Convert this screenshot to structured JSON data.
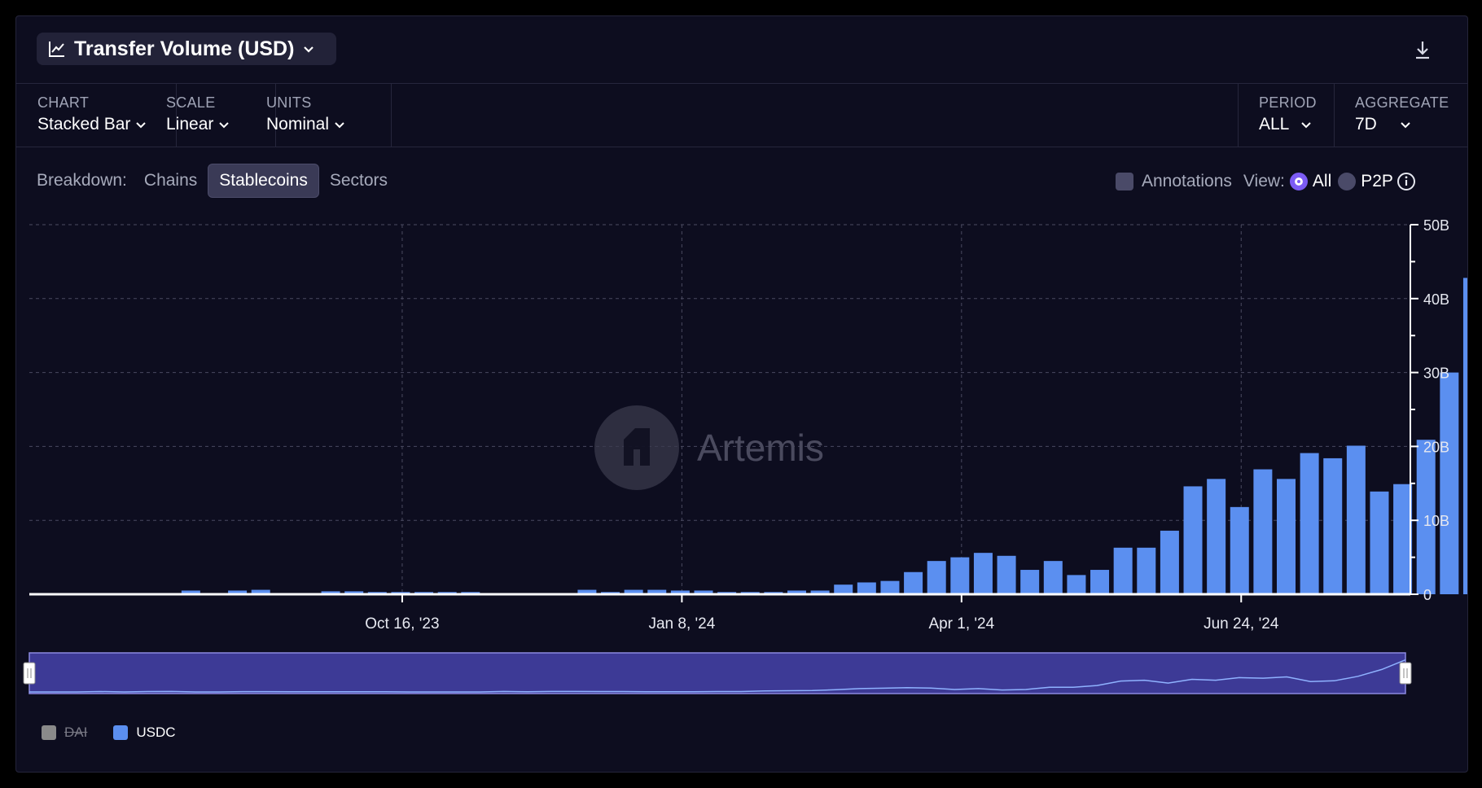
{
  "header": {
    "title": "Transfer Volume (USD)",
    "icons": {
      "title": "line-chart-icon",
      "dropdown": "chevron-down-icon",
      "download": "download-icon"
    }
  },
  "controls": {
    "chart": {
      "label": "CHART",
      "value": "Stacked Bar"
    },
    "scale": {
      "label": "SCALE",
      "value": "Linear"
    },
    "units": {
      "label": "UNITS",
      "value": "Nominal"
    },
    "period": {
      "label": "PERIOD",
      "value": "ALL"
    },
    "aggregate": {
      "label": "AGGREGATE",
      "value": "7D"
    }
  },
  "breakdown": {
    "label": "Breakdown:",
    "options": [
      "Chains",
      "Stablecoins",
      "Sectors"
    ],
    "active": "Stablecoins"
  },
  "options": {
    "annotations": "Annotations",
    "view_label": "View:",
    "view_all": "All",
    "view_p2p": "P2P",
    "info_icon": "info-icon"
  },
  "watermark": "Artemis",
  "colors": {
    "bar": "#5b8ff0",
    "brush": "#3d3a96",
    "active_radio": "#7c5cf5"
  },
  "legend": [
    {
      "name": "DAI",
      "color": "#8a8a8a",
      "disabled": true
    },
    {
      "name": "USDC",
      "color": "#5b8ff0",
      "disabled": false
    }
  ],
  "chart_data": {
    "type": "bar",
    "stacked": true,
    "title": "Transfer Volume (USD)",
    "ylim": [
      0,
      50
    ],
    "y_unit": "B",
    "y_ticks": [
      "0",
      "10B",
      "20B",
      "30B",
      "40B",
      "50B"
    ],
    "x_ticks": [
      {
        "label": "Oct 16, '23",
        "index": 12
      },
      {
        "label": "Jan 8, '24",
        "index": 24
      },
      {
        "label": "Apr 1, '24",
        "index": 36
      },
      {
        "label": "Jun 24, '24",
        "index": 48
      }
    ],
    "grid": true,
    "legend_position": "bottom-left",
    "series": [
      {
        "name": "USDC",
        "values": [
          0,
          0,
          0,
          0.5,
          0,
          0.5,
          0.6,
          0,
          0,
          0.4,
          0.4,
          0.3,
          0.3,
          0.3,
          0.3,
          0.3,
          0,
          0,
          0,
          0,
          0.6,
          0.3,
          0.6,
          0.6,
          0.5,
          0.5,
          0.3,
          0.3,
          0.3,
          0.5,
          0.5,
          1.3,
          1.6,
          1.8,
          3.0,
          4.5,
          5.0,
          5.6,
          5.2,
          3.3,
          4.5,
          2.6,
          3.3,
          6.3,
          6.3,
          8.6,
          14.6,
          15.6,
          11.8,
          16.9,
          15.6,
          19.1,
          18.4,
          20.1,
          13.9,
          14.9,
          20.9,
          30.0,
          42.8
        ]
      }
    ]
  }
}
